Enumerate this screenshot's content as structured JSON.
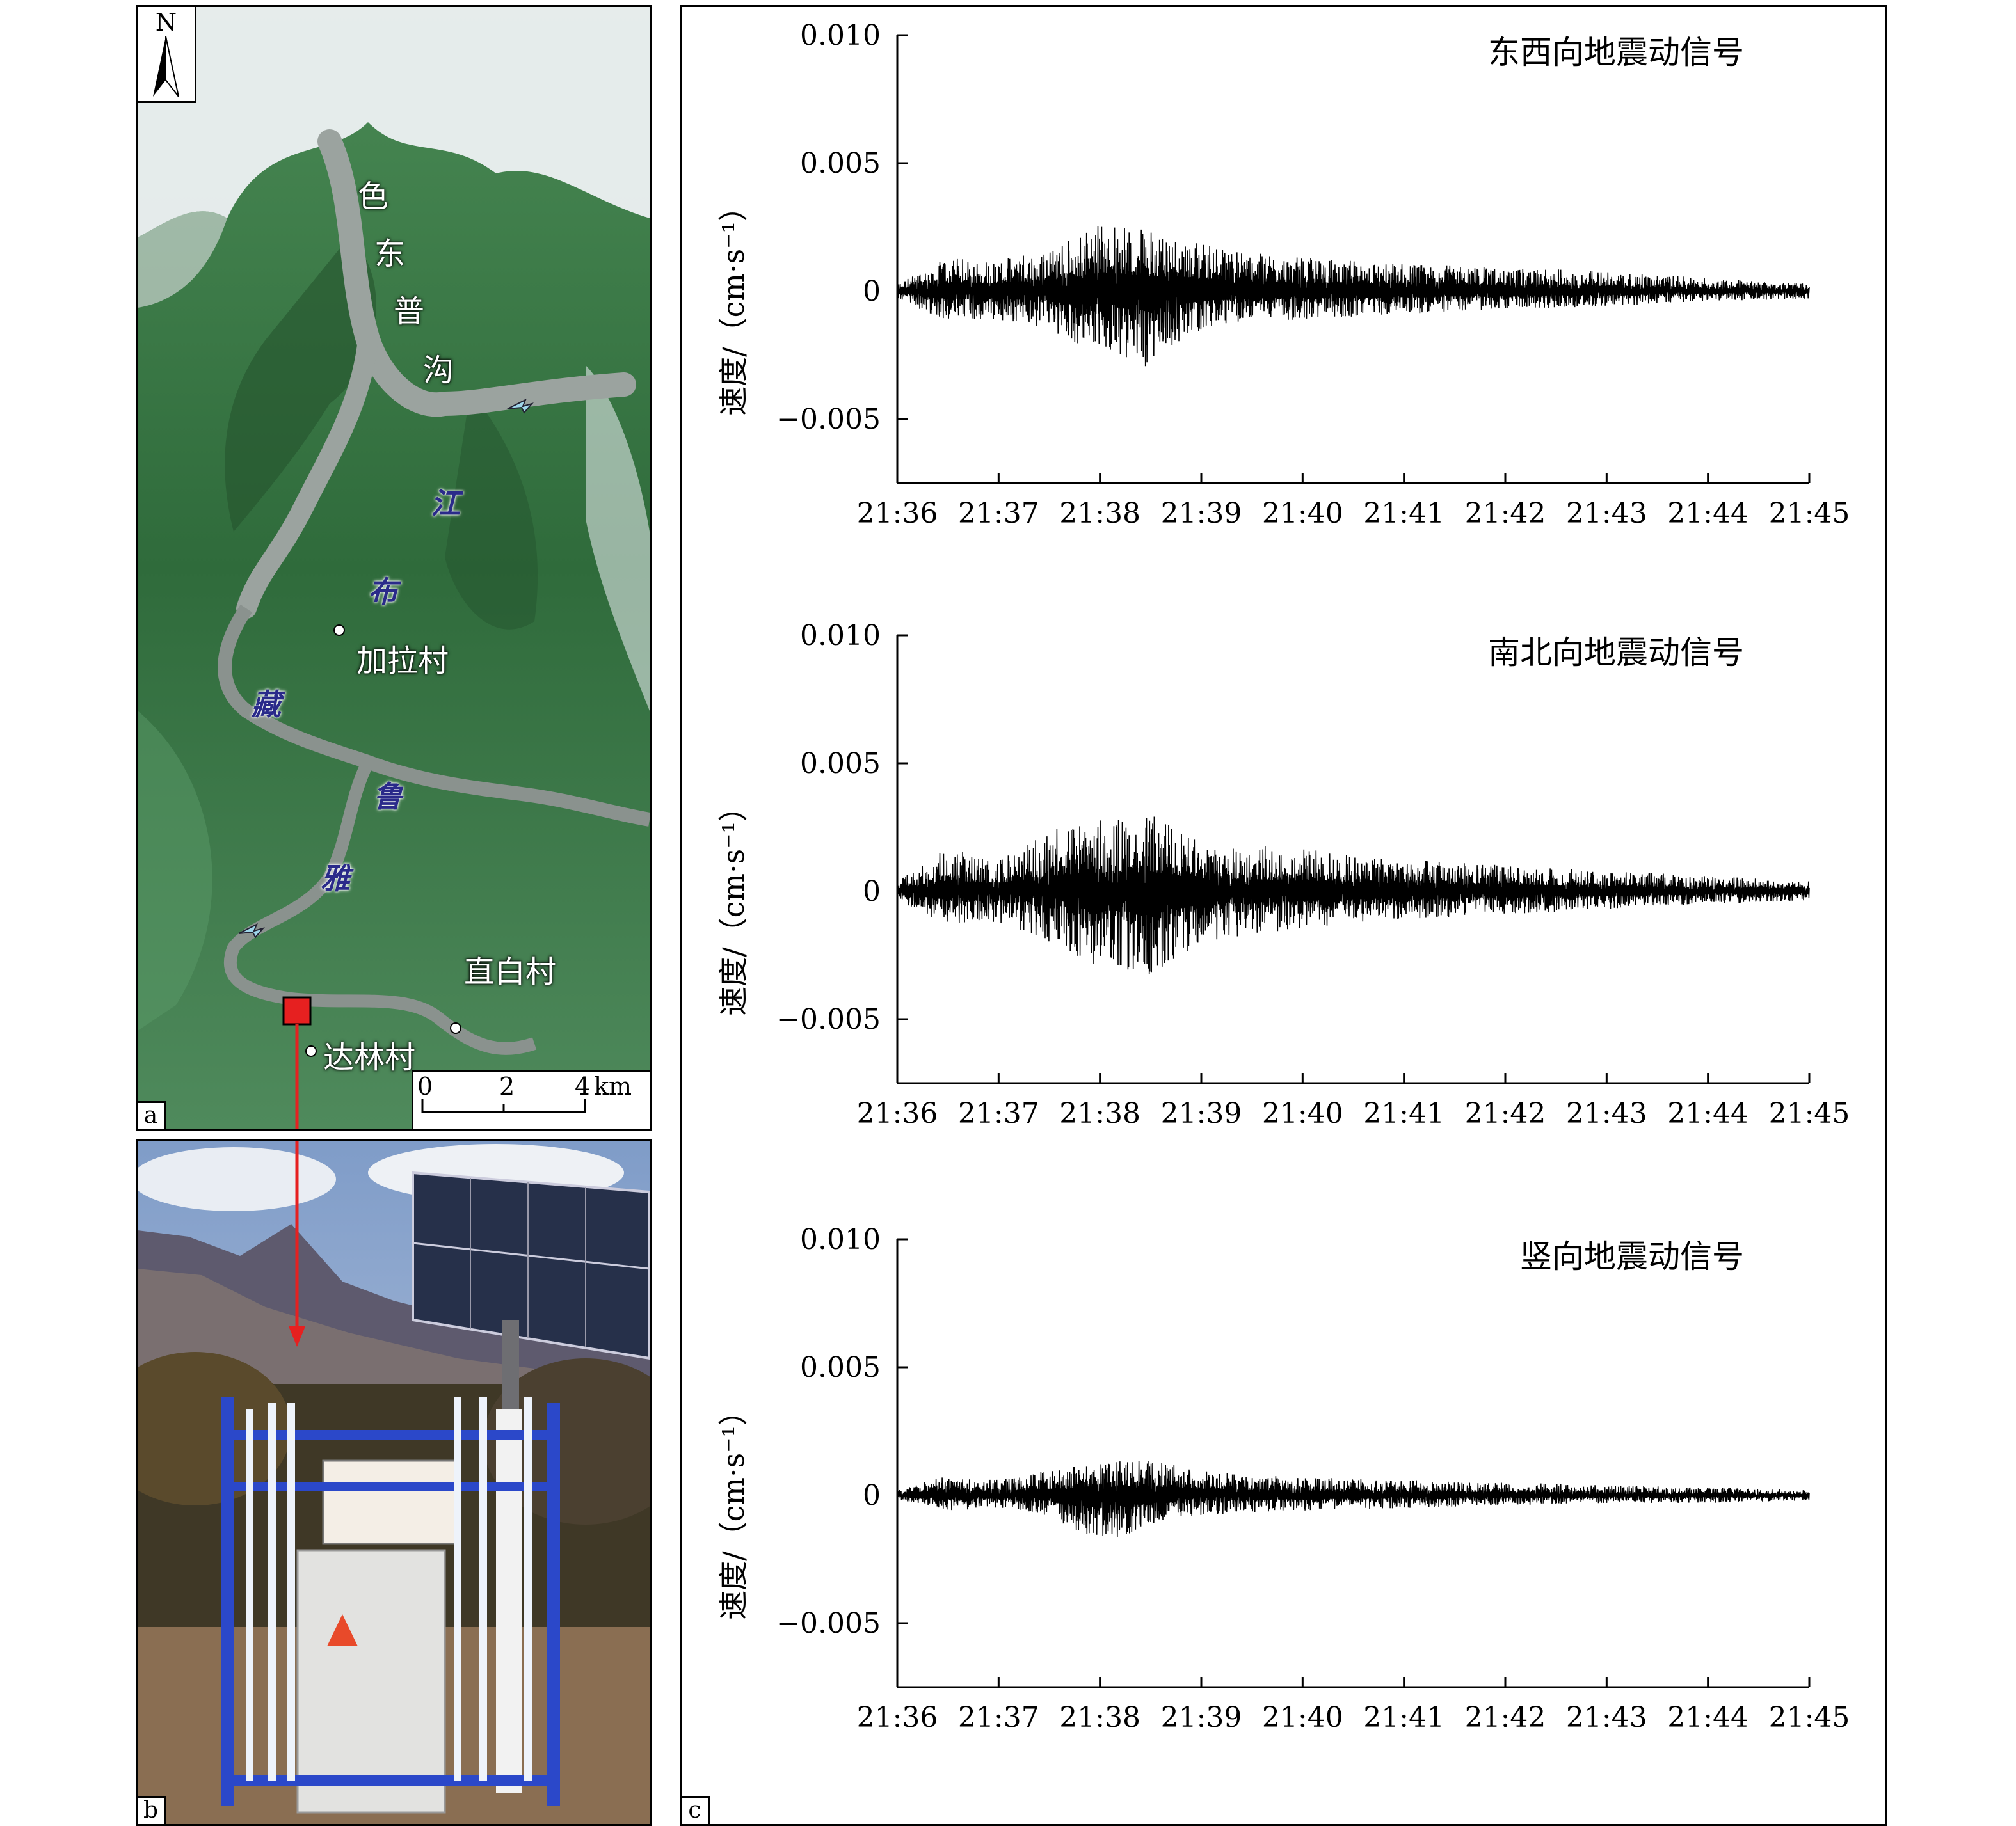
{
  "panel_a": {
    "letter": "a",
    "north": "N",
    "gully_chars": [
      "色",
      "东",
      "普",
      "沟"
    ],
    "river_chars": [
      "江",
      "布",
      "藏",
      "鲁",
      "雅"
    ],
    "villages": [
      "加拉村",
      "直白村",
      "达林村"
    ],
    "scale": {
      "ticks": [
        "0",
        "2",
        "4"
      ],
      "unit": "km"
    },
    "colors": {
      "vegetation": "#3e7a45",
      "snow": "#eef1f3",
      "river": "#8a928e",
      "station": "#e62020"
    }
  },
  "panel_b": {
    "letter": "b"
  },
  "panel_c": {
    "letter": "c"
  },
  "chart_data": [
    {
      "type": "line",
      "title": "东西向地震动信号",
      "ylabel": "速度/（cm·s⁻¹）",
      "x_ticks": [
        "21:36",
        "21:37",
        "21:38",
        "21:39",
        "21:40",
        "21:41",
        "21:42",
        "21:43",
        "21:44",
        "21:45"
      ],
      "y_ticks": [
        "0.010",
        "0.005",
        "0",
        "−0.005"
      ],
      "ylim": [
        -0.0075,
        0.01
      ],
      "xlim": [
        "21:36",
        "21:45"
      ],
      "series": [
        {
          "envelope": [
            [
              "21:36",
              0.0003,
              -0.0003
            ],
            [
              "21:36:30",
              0.0013,
              -0.0012
            ],
            [
              "21:37",
              0.0012,
              -0.0011
            ],
            [
              "21:37:30",
              0.0017,
              -0.0016
            ],
            [
              "21:38",
              0.0027,
              -0.0025
            ],
            [
              "21:38:30",
              0.0024,
              -0.003
            ],
            [
              "21:39",
              0.0019,
              -0.0015
            ],
            [
              "21:39:30",
              0.0015,
              -0.0012
            ],
            [
              "21:40",
              0.0013,
              -0.0011
            ],
            [
              "21:40:30",
              0.0012,
              -0.001
            ],
            [
              "21:41",
              0.0011,
              -0.0009
            ],
            [
              "21:42",
              0.0009,
              -0.0007
            ],
            [
              "21:43",
              0.0008,
              -0.0006
            ],
            [
              "21:44",
              0.0005,
              -0.0004
            ],
            [
              "21:45",
              0.0003,
              -0.0003
            ]
          ]
        }
      ]
    },
    {
      "type": "line",
      "title": "南北向地震动信号",
      "ylabel": "速度/（cm·s⁻¹）",
      "x_ticks": [
        "21:36",
        "21:37",
        "21:38",
        "21:39",
        "21:40",
        "21:41",
        "21:42",
        "21:43",
        "21:44",
        "21:45"
      ],
      "y_ticks": [
        "0.010",
        "0.005",
        "0",
        "−0.005"
      ],
      "ylim": [
        -0.0075,
        0.01
      ],
      "xlim": [
        "21:36",
        "21:45"
      ],
      "series": [
        {
          "envelope": [
            [
              "21:36",
              0.0004,
              -0.0004
            ],
            [
              "21:36:30",
              0.0017,
              -0.0013
            ],
            [
              "21:37",
              0.0012,
              -0.0012
            ],
            [
              "21:37:30",
              0.0024,
              -0.002
            ],
            [
              "21:38",
              0.0028,
              -0.003
            ],
            [
              "21:38:30",
              0.003,
              -0.0033
            ],
            [
              "21:39",
              0.002,
              -0.002
            ],
            [
              "21:39:30",
              0.0018,
              -0.0017
            ],
            [
              "21:40",
              0.0017,
              -0.0015
            ],
            [
              "21:40:30",
              0.0014,
              -0.0012
            ],
            [
              "21:41",
              0.0013,
              -0.0011
            ],
            [
              "21:42",
              0.001,
              -0.0009
            ],
            [
              "21:43",
              0.0008,
              -0.0007
            ],
            [
              "21:44",
              0.0006,
              -0.0005
            ],
            [
              "21:45",
              0.0004,
              -0.0004
            ]
          ]
        }
      ]
    },
    {
      "type": "line",
      "title": "竖向地震动信号",
      "ylabel": "速度/（cm·s⁻¹）",
      "x_ticks": [
        "21:36",
        "21:37",
        "21:38",
        "21:39",
        "21:40",
        "21:41",
        "21:42",
        "21:43",
        "21:44",
        "21:45"
      ],
      "y_ticks": [
        "0.010",
        "0.005",
        "0",
        "−0.005"
      ],
      "ylim": [
        -0.0075,
        0.01
      ],
      "xlim": [
        "21:36",
        "21:45"
      ],
      "series": [
        {
          "envelope": [
            [
              "21:36",
              0.0002,
              -0.0002
            ],
            [
              "21:36:30",
              0.0008,
              -0.0006
            ],
            [
              "21:37",
              0.0006,
              -0.0005
            ],
            [
              "21:37:30",
              0.001,
              -0.0008
            ],
            [
              "21:38",
              0.0013,
              -0.002
            ],
            [
              "21:38:30",
              0.0014,
              -0.0012
            ],
            [
              "21:39",
              0.001,
              -0.0008
            ],
            [
              "21:39:30",
              0.0008,
              -0.0007
            ],
            [
              "21:40",
              0.0007,
              -0.0006
            ],
            [
              "21:41",
              0.0006,
              -0.0005
            ],
            [
              "21:42",
              0.0005,
              -0.0004
            ],
            [
              "21:43",
              0.0004,
              -0.0003
            ],
            [
              "21:44",
              0.0003,
              -0.0003
            ],
            [
              "21:45",
              0.0002,
              -0.0002
            ]
          ]
        }
      ]
    }
  ]
}
